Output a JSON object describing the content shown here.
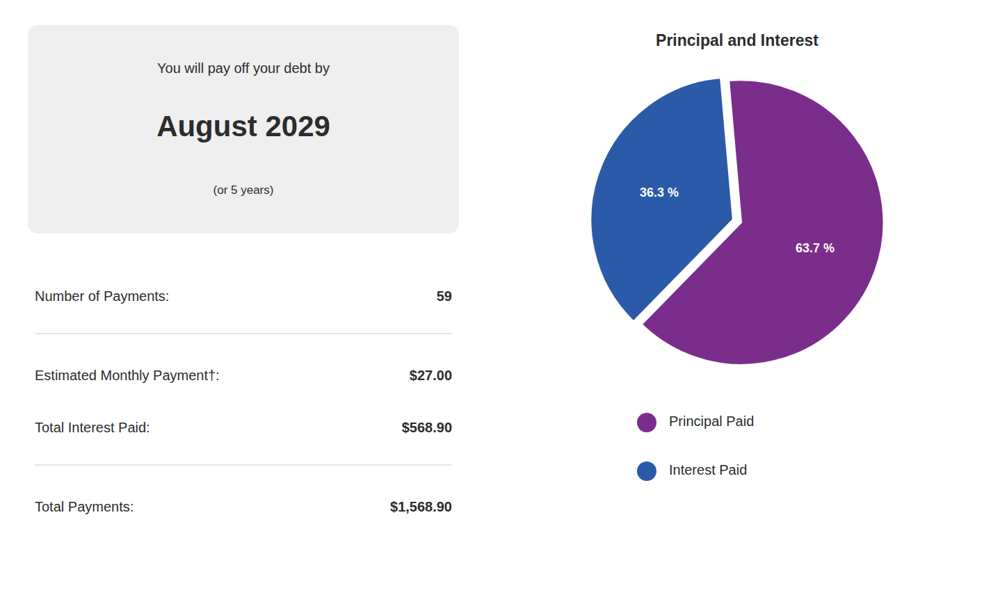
{
  "chart_data": {
    "type": "pie",
    "title": "Principal and Interest",
    "categories": [
      "Principal Paid",
      "Interest Paid"
    ],
    "values": [
      63.7,
      36.3
    ],
    "value_labels": [
      "63.7 %",
      "36.3 %"
    ],
    "colors": [
      "#7B2D8B",
      "#2B5BA8"
    ],
    "data_labels": true,
    "legend": "bottom"
  },
  "summary": {
    "heading": "You will pay off your debt by",
    "date": "August 2029",
    "period": "(or 5 years)",
    "stats": [
      {
        "label": "Number of Payments:",
        "value": "59",
        "separator_below": true
      },
      {
        "label": "Estimated Monthly Payment†:",
        "value": "$27.00",
        "separator_below": false
      },
      {
        "label": "Total Interest Paid:",
        "value": "$568.90",
        "separator_below": true
      },
      {
        "label": "Total Payments:",
        "value": "$1,568.90",
        "separator_below": false
      }
    ]
  }
}
